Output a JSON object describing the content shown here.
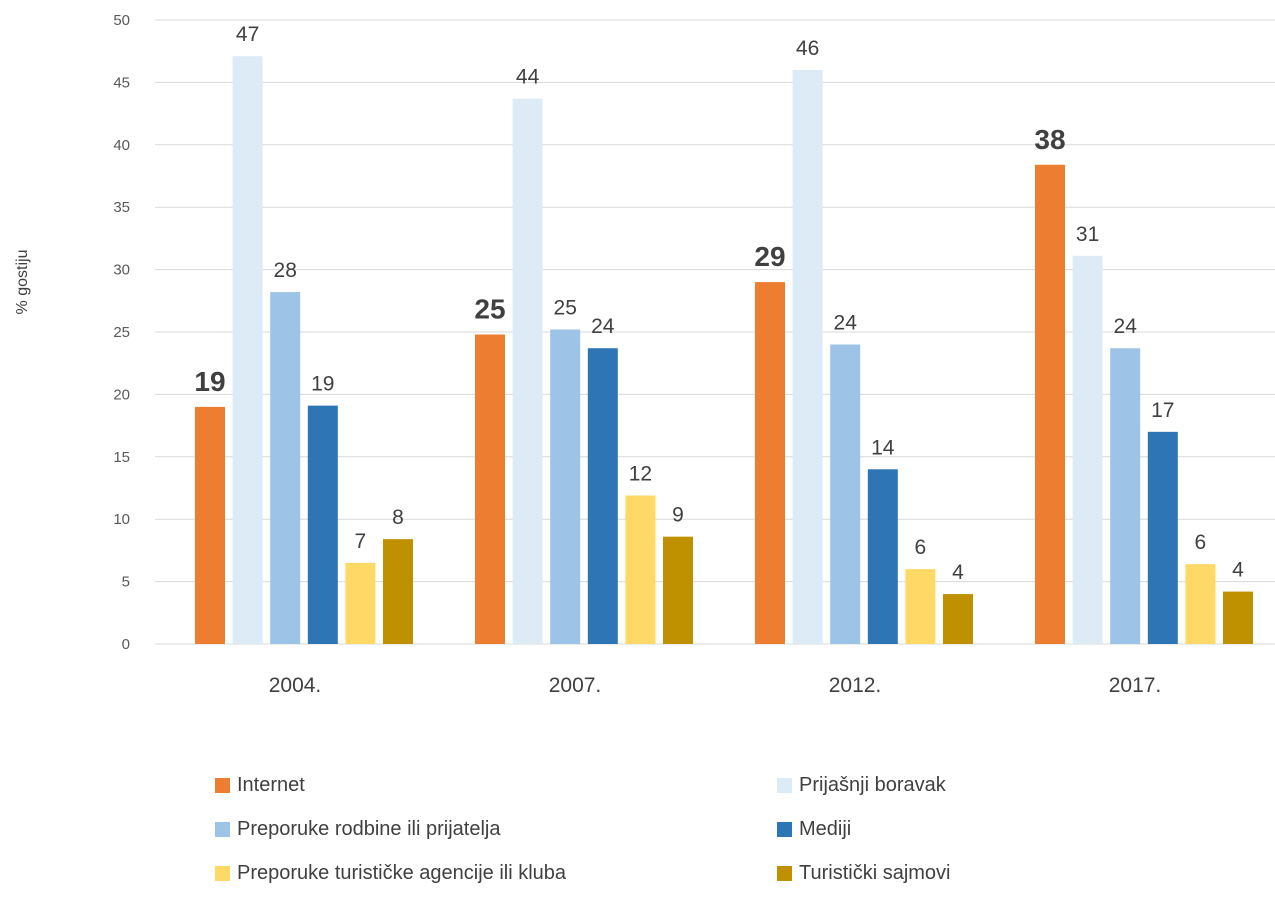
{
  "chart_data": {
    "type": "bar",
    "categories": [
      "2004.",
      "2007.",
      "2012.",
      "2017."
    ],
    "ylabel": "% gostiju",
    "ylim": [
      0,
      50
    ],
    "yticks": [
      0,
      5,
      10,
      15,
      20,
      25,
      30,
      35,
      40,
      45,
      50
    ],
    "grid": true,
    "legend_position": "bottom",
    "series": [
      {
        "name": "Internet",
        "color": "#ED7D31",
        "values": [
          19,
          24.8,
          29,
          38.4
        ],
        "labels": [
          "19",
          "25",
          "29",
          "38"
        ],
        "label_style": "bold"
      },
      {
        "name": "Prijašnji boravak",
        "color": "#DDEBF7",
        "values": [
          47.1,
          43.7,
          46,
          31.1
        ],
        "labels": [
          "47",
          "44",
          "46",
          "31"
        ]
      },
      {
        "name": "Preporuke rodbine ili prijatelja",
        "color": "#9DC3E6",
        "values": [
          28.2,
          25.2,
          24,
          23.7
        ],
        "labels": [
          "28",
          "25",
          "24",
          "24"
        ]
      },
      {
        "name": "Mediji",
        "color": "#2E75B6",
        "values": [
          19.1,
          23.7,
          14,
          17
        ],
        "labels": [
          "19",
          "24",
          "14",
          "17"
        ]
      },
      {
        "name": "Preporuke turističke agencije ili kluba",
        "color": "#FFD966",
        "values": [
          6.5,
          11.9,
          6,
          6.4
        ],
        "labels": [
          "7",
          "12",
          "6",
          "6"
        ]
      },
      {
        "name": "Turistički sajmovi",
        "color": "#BF9000",
        "values": [
          8.4,
          8.6,
          4,
          4.2
        ],
        "labels": [
          "8",
          "9",
          "4",
          "4"
        ]
      }
    ]
  }
}
